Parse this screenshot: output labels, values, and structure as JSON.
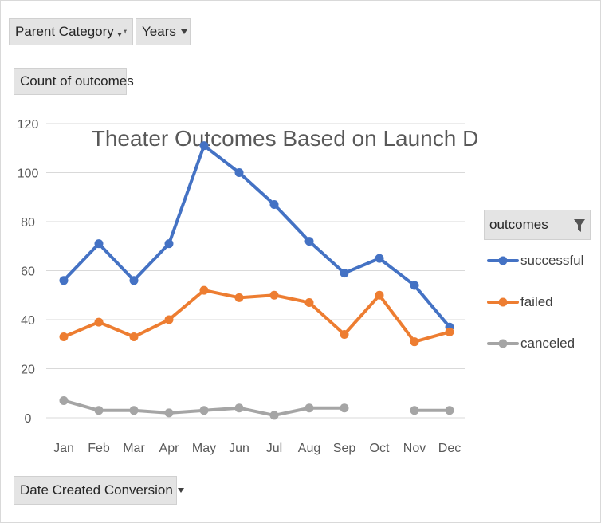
{
  "filters": {
    "parent_category": "Parent Category",
    "years": "Years",
    "values_field": "Count of outcomes",
    "axis_field": "Date Created Conversion"
  },
  "legend": {
    "header": "outcomes"
  },
  "colors": {
    "successful": "#4472c4",
    "failed": "#ed7d31",
    "canceled": "#a5a5a5",
    "grid": "#d9d9d9"
  },
  "chart_data": {
    "type": "line",
    "title": "Theater Outcomes Based on Launch Date",
    "categories": [
      "Jan",
      "Feb",
      "Mar",
      "Apr",
      "May",
      "Jun",
      "Jul",
      "Aug",
      "Sep",
      "Oct",
      "Nov",
      "Dec"
    ],
    "ylim": [
      0,
      120
    ],
    "yticks": [
      0,
      20,
      40,
      60,
      80,
      100,
      120
    ],
    "grid": true,
    "legend_position": "right",
    "series": [
      {
        "name": "successful",
        "values": [
          56,
          71,
          56,
          71,
          111,
          100,
          87,
          72,
          59,
          65,
          54,
          37
        ]
      },
      {
        "name": "failed",
        "values": [
          33,
          39,
          33,
          40,
          52,
          49,
          50,
          47,
          34,
          50,
          31,
          35
        ]
      },
      {
        "name": "canceled",
        "values": [
          7,
          3,
          3,
          2,
          3,
          4,
          1,
          4,
          4,
          null,
          3,
          3
        ]
      }
    ]
  }
}
